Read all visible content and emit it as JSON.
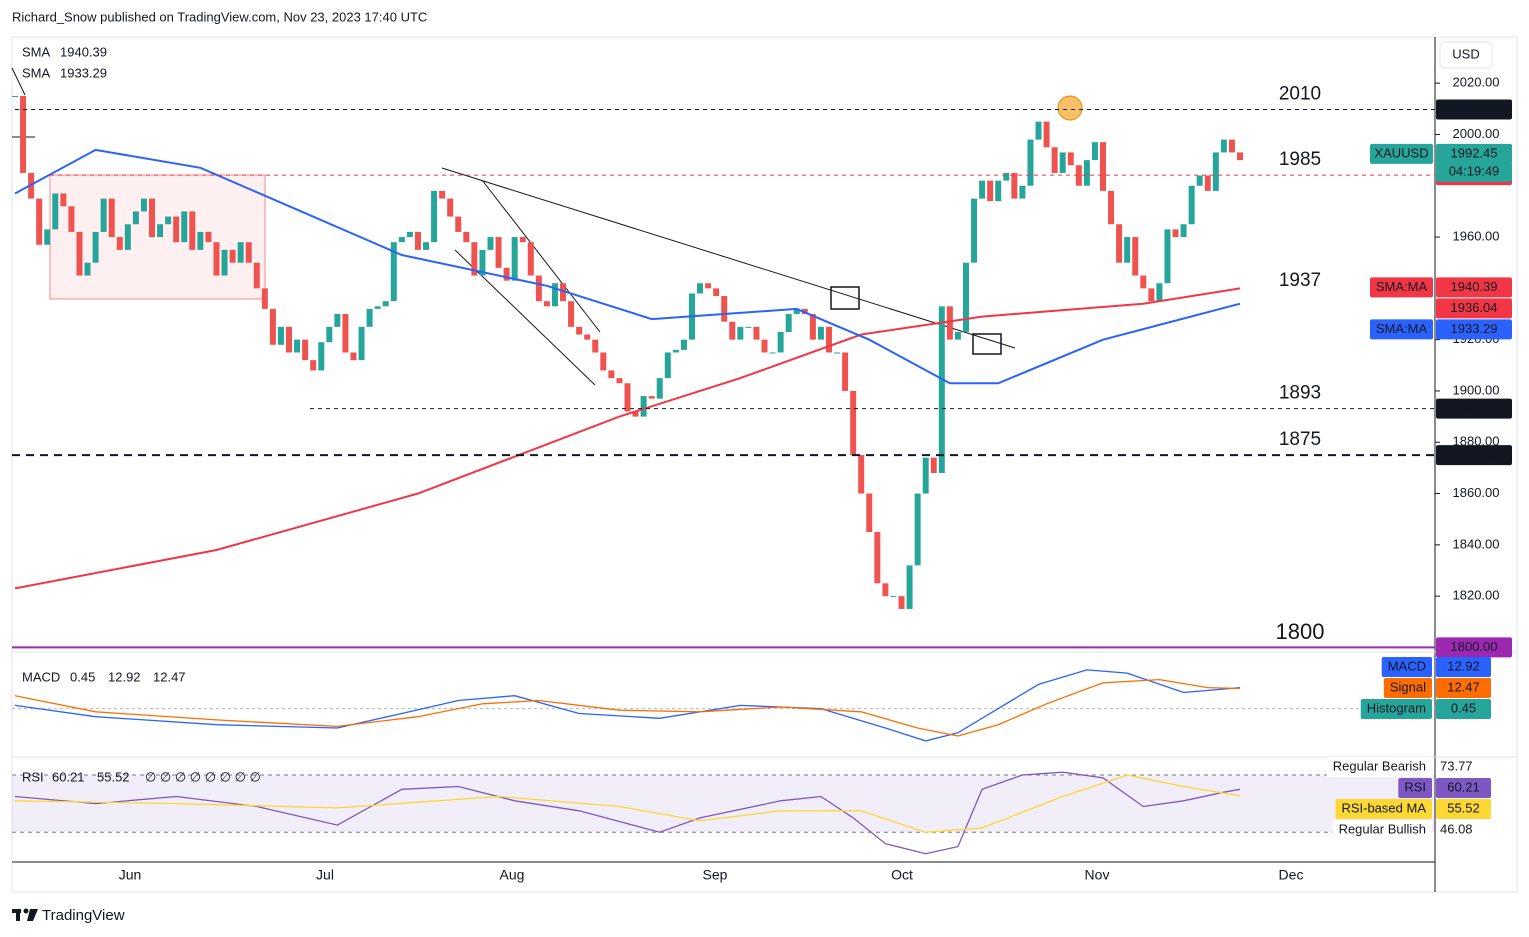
{
  "header": {
    "byline": "Richard_Snow published on TradingView.com, Nov 23, 2023 17:40 UTC",
    "brand": "TradingView",
    "currency": "USD"
  },
  "chart_data": [
    {
      "type": "candlestick",
      "symbol": "XAUUSD",
      "close": [
        2015,
        1985,
        1975,
        1957,
        1963,
        1977,
        1972,
        1962,
        1945,
        1950,
        1962,
        1975,
        1960,
        1955,
        1965,
        1970,
        1975,
        1960,
        1965,
        1968,
        1958,
        1970,
        1955,
        1962,
        1958,
        1945,
        1955,
        1950,
        1958,
        1950,
        1940,
        1932,
        1918,
        1925,
        1915,
        1920,
        1912,
        1908,
        1919,
        1925,
        1930,
        1915,
        1912,
        1925,
        1932,
        1933,
        1935,
        1958,
        1960,
        1962,
        1955,
        1958,
        1978,
        1975,
        1968,
        1962,
        1958,
        1945,
        1955,
        1960,
        1948,
        1943,
        1960,
        1958,
        1945,
        1935,
        1933,
        1942,
        1935,
        1925,
        1922,
        1920,
        1915,
        1908,
        1905,
        1903,
        1892,
        1890,
        1898,
        1897,
        1905,
        1915,
        1916,
        1920,
        1938,
        1942,
        1940,
        1937,
        1927,
        1920,
        1925,
        1925,
        1920,
        1915,
        1915,
        1923,
        1930,
        1932,
        1930,
        1920,
        1925,
        1915,
        1915,
        1900,
        1875,
        1860,
        1845,
        1825,
        1820,
        1820,
        1815,
        1832,
        1860,
        1874,
        1868,
        1933,
        1920,
        1923,
        1950,
        1975,
        1982,
        1974,
        1982,
        1985,
        1975,
        1980,
        1998,
        2005,
        1995,
        1985,
        1993,
        1988,
        1980,
        1990,
        1997,
        1978,
        1965,
        1950,
        1960,
        1945,
        1940,
        1935,
        1942,
        1963,
        1960,
        1965,
        1980,
        1984,
        1978,
        1993,
        1998,
        1993,
        1990
      ],
      "up_color": "#26a69a",
      "down_color": "#ef5350",
      "ylim": [
        1799,
        2038
      ],
      "yticks": [
        {
          "value": 2020,
          "label": "2020.00"
        },
        {
          "value": 2000,
          "label": "2000.00"
        },
        {
          "value": 1960,
          "label": "1960.00"
        },
        {
          "value": 1920,
          "label": "1920.00"
        },
        {
          "value": 1900,
          "label": "1900.00"
        },
        {
          "value": 1880,
          "label": "1880.00"
        },
        {
          "value": 1860,
          "label": "1860.00"
        },
        {
          "value": 1840,
          "label": "1840.00"
        },
        {
          "value": 1820,
          "label": "1820.00"
        }
      ],
      "x_labels": [
        "Jun",
        "Jul",
        "Aug",
        "Sep",
        "Oct",
        "Nov",
        "Dec"
      ],
      "series": [
        {
          "name": "SMA",
          "last": 1940.39,
          "color": "#f23645",
          "x": [
            0,
            25,
            50,
            75,
            90,
            105,
            120,
            140,
            152
          ],
          "values": [
            1823,
            1838,
            1860,
            1890,
            1905,
            1922,
            1929,
            1934,
            1940
          ]
        },
        {
          "name": "SMA",
          "last": 1933.29,
          "color": "#2962ff",
          "x": [
            0,
            10,
            23,
            48,
            66,
            79,
            97,
            106,
            116,
            122,
            135,
            152
          ],
          "values": [
            1977,
            1994,
            1987,
            1953,
            1941,
            1928,
            1932,
            1920,
            1903,
            1903,
            1920,
            1934
          ]
        }
      ],
      "levels": [
        {
          "value": 2009.75,
          "label": "2010",
          "color": "#131722",
          "style": "dashed"
        },
        {
          "value": 1984.16,
          "label": "1985",
          "color": "#f23645",
          "style": "dashed"
        },
        {
          "value": 1937,
          "label": "1937",
          "color": "#f23645",
          "style": "none"
        },
        {
          "value": 1893.12,
          "label": "1893",
          "color": "#131722",
          "style": "dashed"
        },
        {
          "value": 1875,
          "label": "1875",
          "badge": "1875.00",
          "color": "#131722",
          "style": "thick"
        },
        {
          "value": 1800,
          "label": "1800",
          "badge": "1800.00",
          "color": "#9c27b0",
          "style": "solid"
        }
      ],
      "price_badges": [
        {
          "name": "SMA:MA",
          "value": 1940.39,
          "color": "#f23645"
        },
        {
          "value": 1936.04,
          "color": "#f23645"
        },
        {
          "name": "SMA:MA",
          "value": 1933.29,
          "color": "#2962ff"
        }
      ],
      "last_price": {
        "value": 1992.45,
        "countdown": "04:19:49",
        "color": "#26a69a"
      }
    },
    {
      "type": "line",
      "name": "MACD",
      "ylim": [
        -30,
        32
      ],
      "baseline": 0,
      "series": [
        {
          "name": "MACD",
          "last": 12.92,
          "color": "#2962ff",
          "x": [
            0,
            10,
            25,
            40,
            48,
            55,
            62,
            70,
            80,
            90,
            100,
            108,
            113,
            117,
            122,
            127,
            133,
            138,
            145,
            152
          ],
          "values": [
            2,
            -5,
            -10,
            -12,
            -3,
            5,
            8,
            -3,
            -6,
            2,
            0,
            -12,
            -20,
            -15,
            0,
            15,
            24,
            22,
            10,
            13
          ]
        },
        {
          "name": "Signal",
          "last": 12.47,
          "color": "#ff6d00",
          "x": [
            0,
            10,
            25,
            40,
            50,
            58,
            65,
            75,
            85,
            95,
            105,
            112,
            117,
            122,
            128,
            135,
            142,
            148,
            152
          ],
          "values": [
            8,
            -2,
            -7,
            -11,
            -5,
            3,
            5,
            -1,
            -2,
            1,
            -2,
            -12,
            -17,
            -10,
            3,
            16,
            18,
            13,
            12.5
          ]
        }
      ],
      "histogram": {
        "name": "Histogram",
        "last": 0.45,
        "color": "#26a69a"
      }
    },
    {
      "type": "line",
      "name": "RSI",
      "ylim": [
        12,
        80.5
      ],
      "band": [
        30,
        70
      ],
      "inputs": "∅ ∅ ∅ ∅ ∅ ∅ ∅ ∅",
      "series": [
        {
          "name": "RSI",
          "last": 60.21,
          "color": "#7e57c2",
          "x": [
            0,
            10,
            20,
            30,
            40,
            48,
            55,
            62,
            70,
            80,
            85,
            95,
            100,
            104,
            108,
            113,
            117,
            120,
            125,
            130,
            135,
            140,
            145,
            150,
            152
          ],
          "values": [
            55,
            50,
            55,
            48,
            35,
            60,
            62,
            52,
            45,
            30,
            40,
            52,
            55,
            40,
            22,
            15,
            20,
            60,
            70,
            72,
            68,
            48,
            52,
            58,
            60
          ]
        },
        {
          "name": "RSI-based MA",
          "last": 55.52,
          "color": "#fdd835",
          "x": [
            0,
            20,
            40,
            60,
            75,
            85,
            95,
            105,
            113,
            120,
            130,
            138,
            145,
            152
          ],
          "values": [
            52,
            50,
            47,
            55,
            48,
            38,
            45,
            45,
            30,
            33,
            55,
            70,
            62,
            55.5
          ]
        }
      ],
      "divergence": [
        {
          "name": "Regular Bearish",
          "value": 73.77
        },
        {
          "name": "Regular Bullish",
          "value": 46.08
        }
      ]
    }
  ]
}
